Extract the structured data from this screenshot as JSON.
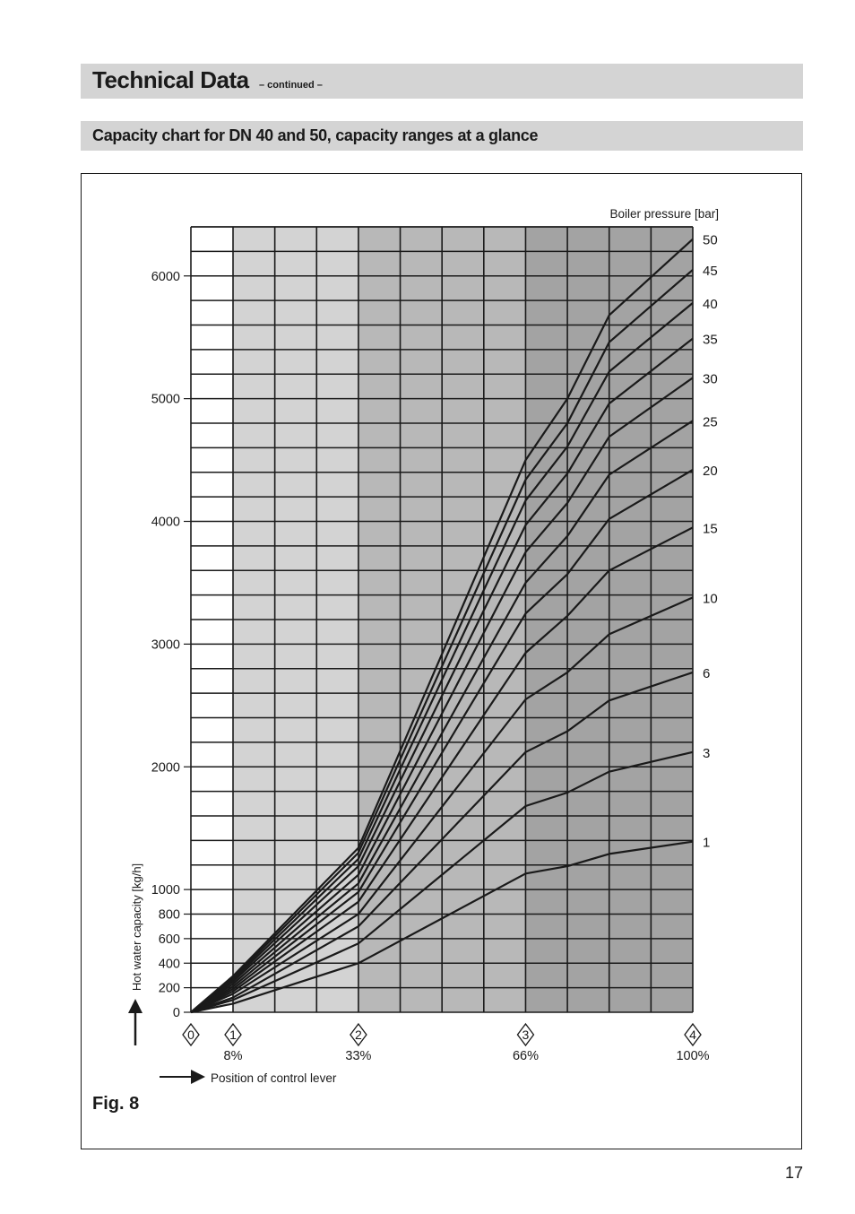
{
  "header": {
    "title": "Technical Data",
    "subtitle": "– continued –"
  },
  "section_title": "Capacity chart for DN 40 and 50, capacity ranges at a glance",
  "figure_label": "Fig. 8",
  "page_number": "17",
  "chart_data": {
    "type": "line",
    "ylabel": "Hot water capacity [kg/h]",
    "xlabel": "Position of control lever",
    "legend_title": "Boiler pressure [bar]",
    "ylim": [
      0,
      6400
    ],
    "xlim": [
      0,
      4
    ],
    "grid": true,
    "y_ticks": [
      0,
      200,
      400,
      600,
      800,
      1000,
      2000,
      3000,
      4000,
      5000,
      6000
    ],
    "x_ticks": [
      {
        "value": 0,
        "label": "0",
        "percent": ""
      },
      {
        "value": 0.25,
        "label": "1",
        "percent": "8%"
      },
      {
        "value": 1,
        "label": "2",
        "percent": "33%"
      },
      {
        "value": 2,
        "label": "3",
        "percent": "66%"
      },
      {
        "value": 3,
        "label": "4",
        "percent": "100%"
      }
    ],
    "x": [
      0,
      0.25,
      1,
      2,
      2.25,
      2.5,
      3
    ],
    "series": [
      {
        "name": "1",
        "values": [
          0,
          70,
          400,
          1130,
          1190,
          1290,
          1390
        ]
      },
      {
        "name": "3",
        "values": [
          0,
          100,
          560,
          1680,
          1790,
          1960,
          2120
        ]
      },
      {
        "name": "6",
        "values": [
          0,
          120,
          700,
          2120,
          2290,
          2540,
          2770
        ]
      },
      {
        "name": "10",
        "values": [
          0,
          150,
          800,
          2550,
          2770,
          3080,
          3380
        ]
      },
      {
        "name": "15",
        "values": [
          0,
          170,
          900,
          2930,
          3230,
          3600,
          3950
        ]
      },
      {
        "name": "20",
        "values": [
          0,
          190,
          980,
          3250,
          3570,
          4020,
          4420
        ]
      },
      {
        "name": "25",
        "values": [
          0,
          210,
          1050,
          3500,
          3880,
          4380,
          4820
        ]
      },
      {
        "name": "30",
        "values": [
          0,
          230,
          1120,
          3750,
          4150,
          4690,
          5170
        ]
      },
      {
        "name": "35",
        "values": [
          0,
          250,
          1190,
          3970,
          4390,
          4960,
          5490
        ]
      },
      {
        "name": "40",
        "values": [
          0,
          265,
          1250,
          4170,
          4610,
          5220,
          5780
        ]
      },
      {
        "name": "45",
        "values": [
          0,
          280,
          1300,
          4340,
          4800,
          5460,
          6050
        ]
      },
      {
        "name": "50",
        "values": [
          0,
          295,
          1340,
          4500,
          5000,
          5680,
          6300
        ]
      }
    ],
    "shade_bands": [
      {
        "from": 0,
        "to": 0.25,
        "color": "#ffffff"
      },
      {
        "from": 0.25,
        "to": 1,
        "color": "#d3d3d3"
      },
      {
        "from": 1,
        "to": 2,
        "color": "#b8b8b8"
      },
      {
        "from": 2,
        "to": 3,
        "color": "#a3a3a3"
      }
    ],
    "line_color": "#1a1a1a"
  }
}
